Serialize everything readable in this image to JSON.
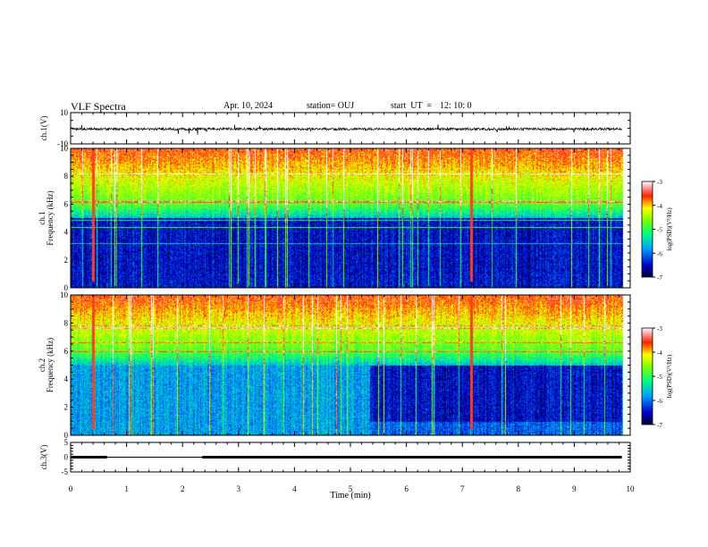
{
  "chart_data": {
    "type": "heatmap",
    "title": "VLF Spectra",
    "header": {
      "date": "Apr. 10, 2024",
      "station": "station= OUJ",
      "start_label": "start  UT  =",
      "start_time": "12: 10: 0"
    },
    "xlabel": "Time  (min)",
    "xlim": [
      0,
      10
    ],
    "xticks": [
      "0",
      "1",
      "2",
      "3",
      "4",
      "5",
      "6",
      "7",
      "8",
      "9",
      "10"
    ],
    "panels": [
      {
        "id": "ch1-waveform",
        "ylabel": "ch.1(V)",
        "ylim": [
          -10,
          10
        ],
        "yticks": [
          "10",
          "-10"
        ],
        "trace_level_v": -0.5
      },
      {
        "id": "ch1-spectrogram",
        "ylabel_top": "ch.1",
        "ylabel": "Frequency  (kHz)",
        "ylim": [
          0,
          10
        ],
        "yticks": [
          "0",
          "2",
          "4",
          "6",
          "8",
          "10"
        ],
        "colorbar": {
          "label": "log(PSD)(V²/Hz)",
          "range": [
            -7,
            -3
          ],
          "ticks": [
            "-3",
            "-4",
            "-5",
            "-6",
            "-7"
          ]
        },
        "bright_lines_min": [
          0.4,
          7.15
        ],
        "quiet_band_khz": [
          0,
          5
        ],
        "quiet_period_min": [
          0,
          9.85
        ]
      },
      {
        "id": "ch2-spectrogram",
        "ylabel_top": "ch.2",
        "ylabel": "Frequency  (kHz)",
        "ylim": [
          0,
          10
        ],
        "yticks": [
          "0",
          "2",
          "4",
          "6",
          "8",
          "10"
        ],
        "colorbar": {
          "label": "log(PSD)(V²/Hz)",
          "range": [
            -7,
            -3
          ],
          "ticks": [
            "-3",
            "-4",
            "-5",
            "-6",
            "-7"
          ]
        },
        "bright_lines_min": [
          0.4,
          7.15
        ],
        "quiet_band_khz": [
          0,
          5
        ],
        "quiet_period_min": [
          5.35,
          9.85
        ]
      },
      {
        "id": "ch3-waveform",
        "ylabel": "ch.3(V)",
        "ylim": [
          -5,
          5
        ],
        "yticks": [
          "5",
          "0",
          "-5"
        ],
        "trace_level_v": 0,
        "gaps_min": [
          [
            0.65,
            2.35
          ]
        ]
      }
    ],
    "data_end_min": 9.85,
    "colormap": [
      "#000033",
      "#0000a0",
      "#0040ff",
      "#00c0ff",
      "#00ff80",
      "#80ff00",
      "#ffff00",
      "#ff8000",
      "#ff0000",
      "#ffc0c0",
      "#ffffff"
    ],
    "grid": false
  }
}
